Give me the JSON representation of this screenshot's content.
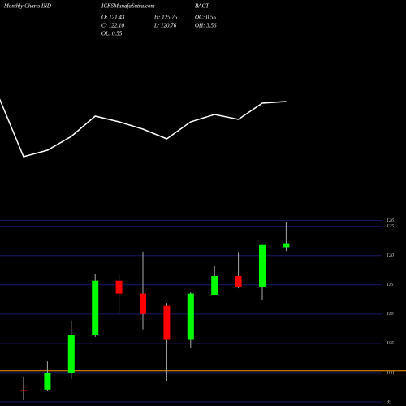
{
  "chart_data": [
    {
      "type": "line",
      "color": "#ffffff",
      "values": [
        78,
        7,
        15,
        32,
        57,
        50,
        41,
        29,
        50,
        59,
        53,
        73,
        75
      ],
      "ylim": [
        0,
        200
      ]
    },
    {
      "type": "candlestick",
      "header": {
        "site": "Monthly Charts IND",
        "source": "ICKSMunafaSutra.com",
        "symbol": "BACT",
        "stats": [
          "O: 121.43",
          "H: 125.75",
          "OC: 0.55",
          "C: 122.10",
          "L: 120.76",
          "OH: 3.56",
          "OL: 0.55"
        ]
      },
      "categories": [
        null,
        null,
        null,
        null,
        null,
        null,
        null,
        null,
        null,
        null,
        null,
        null
      ],
      "open": [
        97.0,
        97.1,
        100.0,
        106.4,
        115.7,
        113.5,
        111.4,
        105.6,
        113.3,
        116.5,
        114.7,
        121.43
      ],
      "close": [
        96.8,
        100.0,
        106.5,
        115.7,
        113.5,
        110.0,
        105.6,
        113.5,
        116.5,
        114.7,
        121.8,
        122.1
      ],
      "high": [
        99.3,
        101.9,
        108.9,
        116.9,
        116.7,
        120.7,
        111.9,
        113.8,
        118.3,
        120.6,
        121.8,
        125.75
      ],
      "low": [
        95.3,
        96.9,
        98.9,
        106.1,
        110.1,
        107.4,
        98.6,
        104.2,
        113.3,
        114.4,
        112.4,
        120.76
      ],
      "up_color": "#00ff00",
      "down_color": "#ff0000",
      "ylim": [
        94.3,
        126.9
      ],
      "yticks": [
        95,
        100,
        105,
        110,
        115,
        120,
        125,
        126
      ],
      "reference_line": {
        "value": 100.3,
        "color": "#ff9900"
      }
    }
  ]
}
